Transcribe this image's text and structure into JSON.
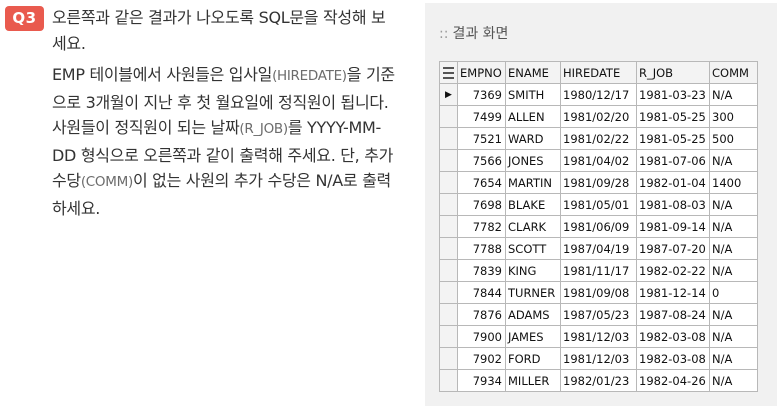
{
  "question": {
    "badge": "Q3",
    "para1": "오른쪽과 같은 결과가 나오도록 SQL문을 작성해 보세요.",
    "para2": {
      "t1": "EMP 테이블에서 사원들은 입사일",
      "s1": "(HIREDATE)",
      "t2": "을 기준으로 3개월이 지난 후 첫 월요일에 정직원이 됩니다. 사원들이 정직원이 되는 날짜",
      "s2": "(R_JOB)",
      "t3": "를 YYYY-MM-DD 형식으로 오른쪽과 같이 출력해 주세요. 단, 추가 수당",
      "s3": "(COMM)",
      "t4": "이 없는 사원의 추가 수당은 N/A로 출력하세요."
    }
  },
  "result_panel": {
    "title_prefix": "::",
    "title": "결과 화면",
    "columns": [
      "EMPNO",
      "ENAME",
      "HIREDATE",
      "R_JOB",
      "COMM"
    ],
    "current_row_marker": "▶",
    "rows": [
      [
        "7369",
        "SMITH",
        "1980/12/17",
        "1981-03-23",
        "N/A"
      ],
      [
        "7499",
        "ALLEN",
        "1981/02/20",
        "1981-05-25",
        "300"
      ],
      [
        "7521",
        "WARD",
        "1981/02/22",
        "1981-05-25",
        "500"
      ],
      [
        "7566",
        "JONES",
        "1981/04/02",
        "1981-07-06",
        "N/A"
      ],
      [
        "7654",
        "MARTIN",
        "1981/09/28",
        "1982-01-04",
        "1400"
      ],
      [
        "7698",
        "BLAKE",
        "1981/05/01",
        "1981-08-03",
        "N/A"
      ],
      [
        "7782",
        "CLARK",
        "1981/06/09",
        "1981-09-14",
        "N/A"
      ],
      [
        "7788",
        "SCOTT",
        "1987/04/19",
        "1987-07-20",
        "N/A"
      ],
      [
        "7839",
        "KING",
        "1981/11/17",
        "1982-02-22",
        "N/A"
      ],
      [
        "7844",
        "TURNER",
        "1981/09/08",
        "1981-12-14",
        "0"
      ],
      [
        "7876",
        "ADAMS",
        "1987/05/23",
        "1987-08-24",
        "N/A"
      ],
      [
        "7900",
        "JAMES",
        "1981/12/03",
        "1982-03-08",
        "N/A"
      ],
      [
        "7902",
        "FORD",
        "1981/12/03",
        "1982-03-08",
        "N/A"
      ],
      [
        "7934",
        "MILLER",
        "1982/01/23",
        "1982-04-26",
        "N/A"
      ]
    ]
  },
  "colors": {
    "badge": "#e95a4e",
    "panel_bg": "#f1f1f1",
    "grid_border": "#b8b8b8"
  }
}
